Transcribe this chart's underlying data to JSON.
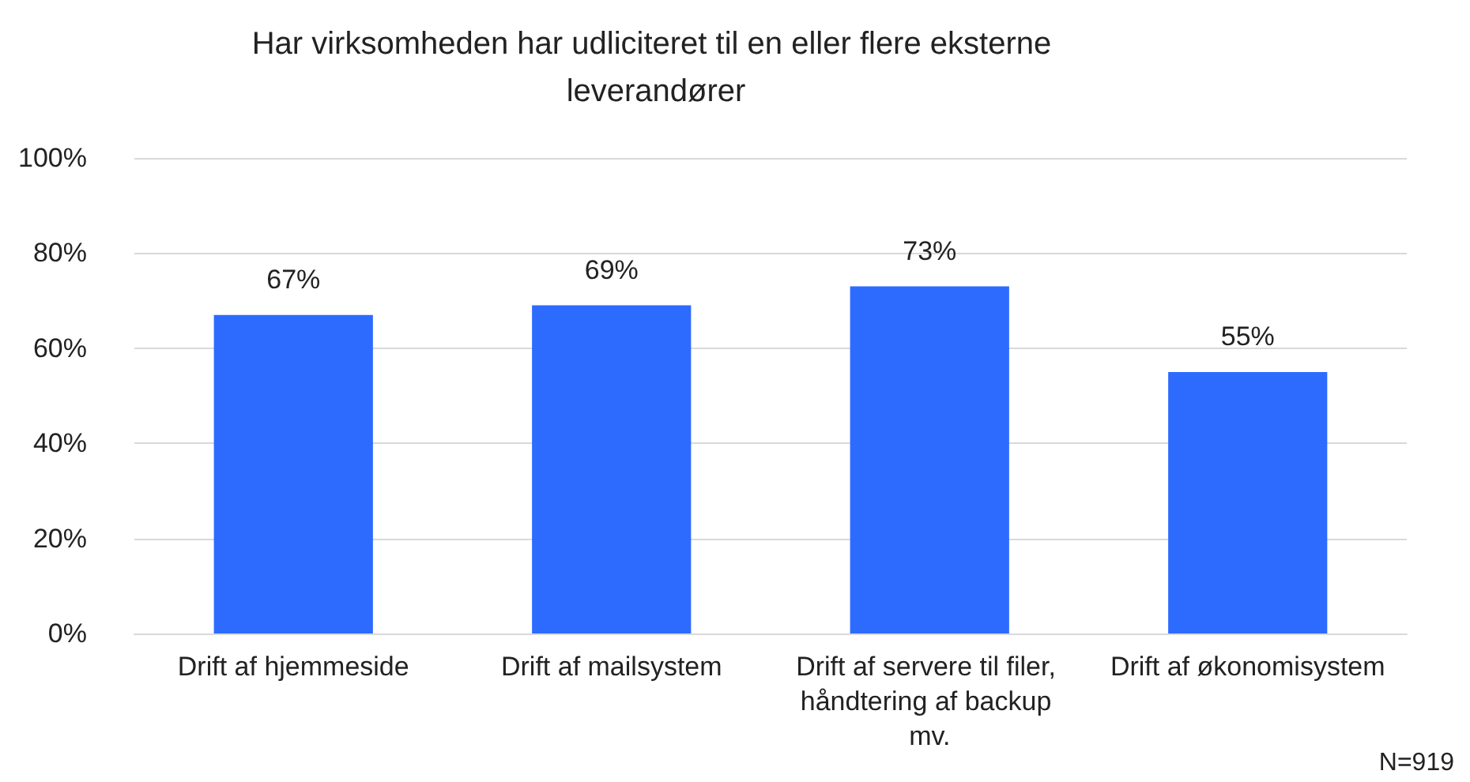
{
  "chart_data": {
    "type": "bar",
    "title": "Har virksomheden har udliciteret til en eller flere eksterne leverandører",
    "categories": [
      "Drift af hjemmeside",
      "Drift af mailsystem",
      "Drift af servere til filer, håndtering af backup mv.",
      "Drift af økonomisystem"
    ],
    "values": [
      67,
      69,
      73,
      55
    ],
    "value_labels": [
      "67%",
      "69%",
      "73%",
      "55%"
    ],
    "color": "#2d6bff",
    "ylim": [
      0,
      100
    ],
    "yticks": [
      {
        "value": 0,
        "label": "0%"
      },
      {
        "value": 20,
        "label": "20%"
      },
      {
        "value": 40,
        "label": "40%"
      },
      {
        "value": 60,
        "label": "60%"
      },
      {
        "value": 80,
        "label": "80%"
      },
      {
        "value": 100,
        "label": "100%"
      }
    ],
    "grid": "y",
    "annotations": [
      "N=919"
    ]
  }
}
